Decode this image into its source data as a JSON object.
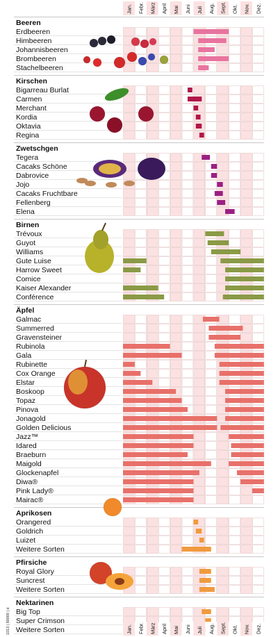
{
  "chart_data": {
    "type": "gantt",
    "months": [
      "Jan.",
      "Febr.",
      "März",
      "April",
      "Mai",
      "Juni",
      "Juli",
      "Aug.",
      "Sept.",
      "Okt.",
      "Nov.",
      "Dez."
    ],
    "print_code": "1013 | 80000 | d",
    "groups": [
      {
        "name": "Beeren",
        "color": "#e8749f",
        "items": [
          {
            "name": "Erdbeeren",
            "spans": [
              [
                6.0,
                9.0
              ]
            ]
          },
          {
            "name": "Himbeeren",
            "spans": [
              [
                6.4,
                8.8
              ]
            ]
          },
          {
            "name": "Johannisbeeren",
            "spans": [
              [
                6.4,
                7.8
              ]
            ]
          },
          {
            "name": "Brombeeren",
            "spans": [
              [
                6.4,
                9.0
              ]
            ]
          },
          {
            "name": "Stachelbeeren",
            "spans": [
              [
                6.4,
                7.3
              ]
            ]
          }
        ]
      },
      {
        "name": "Kirschen",
        "color": "#b0174a",
        "items": [
          {
            "name": "Bigarreau Burlat",
            "spans": [
              [
                5.5,
                5.9
              ]
            ]
          },
          {
            "name": "Carmen",
            "spans": [
              [
                5.5,
                6.7
              ]
            ]
          },
          {
            "name": "Merchant",
            "spans": [
              [
                6.0,
                6.4
              ]
            ]
          },
          {
            "name": "Kordia",
            "spans": [
              [
                6.2,
                6.6
              ]
            ]
          },
          {
            "name": "Oktavia",
            "spans": [
              [
                6.2,
                6.7
              ]
            ]
          },
          {
            "name": "Regina",
            "spans": [
              [
                6.5,
                6.9
              ]
            ]
          }
        ]
      },
      {
        "name": "Zwetschgen",
        "color": "#9b1f83",
        "items": [
          {
            "name": "Tegera",
            "spans": [
              [
                6.7,
                7.4
              ]
            ]
          },
          {
            "name": "Cacaks Schöne",
            "spans": [
              [
                7.5,
                8.0
              ]
            ]
          },
          {
            "name": "Dabrovice",
            "spans": [
              [
                7.5,
                8.0
              ]
            ]
          },
          {
            "name": "Jojo",
            "spans": [
              [
                8.0,
                8.5
              ]
            ]
          },
          {
            "name": "Cacaks Fruchtbare",
            "spans": [
              [
                7.8,
                8.5
              ]
            ]
          },
          {
            "name": "Fellenberg",
            "spans": [
              [
                8.0,
                8.7
              ]
            ]
          },
          {
            "name": "Elena",
            "spans": [
              [
                8.7,
                9.5
              ]
            ]
          }
        ]
      },
      {
        "name": "Birnen",
        "color": "#8a9a46",
        "items": [
          {
            "name": "Trévoux",
            "spans": [
              [
                7.0,
                8.6
              ]
            ]
          },
          {
            "name": "Guyot",
            "spans": [
              [
                7.2,
                9.0
              ]
            ]
          },
          {
            "name": "Williams",
            "spans": [
              [
                7.5,
                10.0
              ]
            ]
          },
          {
            "name": "Gute Luise",
            "spans": [
              [
                0.0,
                2.0
              ],
              [
                8.3,
                12.0
              ]
            ]
          },
          {
            "name": "Harrow Sweet",
            "spans": [
              [
                0.0,
                1.5
              ],
              [
                8.7,
                12.0
              ]
            ]
          },
          {
            "name": "Comice",
            "spans": [
              [
                8.7,
                12.0
              ]
            ]
          },
          {
            "name": "Kaiser Alexander",
            "spans": [
              [
                0.0,
                3.0
              ],
              [
                8.7,
                12.0
              ]
            ]
          },
          {
            "name": "Conférence",
            "spans": [
              [
                0.0,
                3.5
              ],
              [
                8.5,
                12.0
              ]
            ]
          }
        ]
      },
      {
        "name": "Äpfel",
        "color": "#e8706a",
        "items": [
          {
            "name": "Galmac",
            "spans": [
              [
                6.8,
                8.2
              ]
            ]
          },
          {
            "name": "Summerred",
            "spans": [
              [
                7.3,
                10.2
              ]
            ]
          },
          {
            "name": "Gravensteiner",
            "spans": [
              [
                7.3,
                10.0
              ]
            ]
          },
          {
            "name": "Rubinola",
            "spans": [
              [
                0.0,
                4.0
              ],
              [
                7.8,
                12.0
              ]
            ]
          },
          {
            "name": "Gala",
            "spans": [
              [
                0.0,
                5.0
              ],
              [
                7.8,
                12.0
              ]
            ]
          },
          {
            "name": "Rubinette",
            "spans": [
              [
                0.0,
                1.0
              ],
              [
                8.2,
                12.0
              ]
            ]
          },
          {
            "name": "Cox Orange",
            "spans": [
              [
                0.0,
                1.5
              ],
              [
                8.2,
                12.0
              ]
            ]
          },
          {
            "name": "Elstar",
            "spans": [
              [
                0.0,
                2.5
              ],
              [
                8.2,
                12.0
              ]
            ]
          },
          {
            "name": "Boskoop",
            "spans": [
              [
                0.0,
                4.5
              ],
              [
                8.7,
                12.0
              ]
            ]
          },
          {
            "name": "Topaz",
            "spans": [
              [
                0.0,
                5.0
              ],
              [
                8.7,
                12.0
              ]
            ]
          },
          {
            "name": "Pinova",
            "spans": [
              [
                0.0,
                5.5
              ],
              [
                8.7,
                12.0
              ]
            ]
          },
          {
            "name": "Jonagold",
            "spans": [
              [
                0.0,
                8.0
              ],
              [
                8.7,
                12.0
              ]
            ]
          },
          {
            "name": "Golden Delicious",
            "spans": [
              [
                0.0,
                8.0
              ],
              [
                8.3,
                12.0
              ]
            ]
          },
          {
            "name": "Jazz™",
            "spans": [
              [
                0.0,
                6.0
              ],
              [
                9.0,
                12.0
              ]
            ]
          },
          {
            "name": "Idared",
            "spans": [
              [
                0.0,
                6.0
              ],
              [
                9.2,
                12.0
              ]
            ]
          },
          {
            "name": "Braeburn",
            "spans": [
              [
                0.0,
                5.5
              ],
              [
                9.2,
                12.0
              ]
            ]
          },
          {
            "name": "Maigold",
            "spans": [
              [
                0.0,
                7.5
              ],
              [
                9.0,
                12.0
              ]
            ]
          },
          {
            "name": "Glockenapfel",
            "spans": [
              [
                0.0,
                6.5
              ],
              [
                9.7,
                12.0
              ]
            ]
          },
          {
            "name": "Diwa®",
            "spans": [
              [
                0.0,
                6.0
              ],
              [
                10.0,
                12.0
              ]
            ]
          },
          {
            "name": "Pink Lady®",
            "spans": [
              [
                0.0,
                6.0
              ],
              [
                11.0,
                12.0
              ]
            ]
          },
          {
            "name": "Mairac®",
            "spans": [
              [
                0.0,
                6.0
              ]
            ]
          }
        ]
      },
      {
        "name": "Aprikosen",
        "color": "#f09a3e",
        "items": [
          {
            "name": "Orangered",
            "spans": [
              [
                6.0,
                6.4
              ]
            ]
          },
          {
            "name": "Goldrich",
            "spans": [
              [
                6.2,
                6.7
              ]
            ]
          },
          {
            "name": "Luizet",
            "spans": [
              [
                6.5,
                6.9
              ]
            ]
          },
          {
            "name": "Weitere Sorten",
            "spans": [
              [
                5.0,
                7.5
              ]
            ]
          }
        ]
      },
      {
        "name": "Pfirsiche",
        "color": "#f09a3e",
        "items": [
          {
            "name": "Royal Glory",
            "spans": [
              [
                6.5,
                7.5
              ]
            ]
          },
          {
            "name": "Suncrest",
            "spans": [
              [
                6.5,
                7.5
              ]
            ]
          },
          {
            "name": "Weitere Sorten",
            "spans": [
              [
                6.5,
                7.8
              ]
            ]
          }
        ]
      },
      {
        "name": "Nektarinen",
        "color": "#f09a3e",
        "items": [
          {
            "name": "Big Top",
            "spans": [
              [
                6.7,
                7.5
              ]
            ]
          },
          {
            "name": "Super Crimson",
            "spans": [
              [
                7.0,
                7.5
              ]
            ]
          },
          {
            "name": "Weitere Sorten",
            "spans": [
              [
                6.7,
                7.8
              ]
            ]
          }
        ]
      }
    ]
  }
}
